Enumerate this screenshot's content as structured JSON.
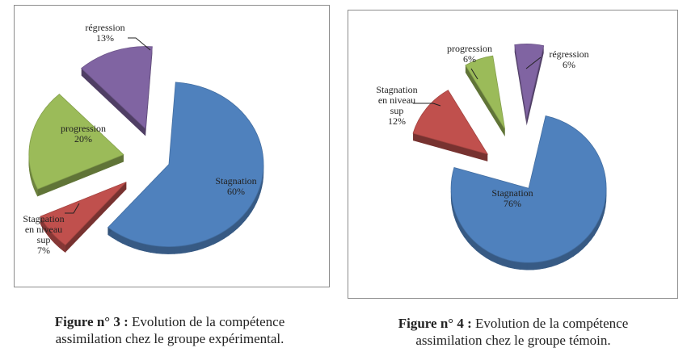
{
  "chart_data": [
    {
      "type": "pie",
      "title": "",
      "categories": [
        "Stagnation",
        "Stagnation en niveau sup",
        "progression",
        "régression"
      ],
      "values": [
        60,
        7,
        20,
        13
      ],
      "labels": [
        [
          "Stagnation",
          "60%"
        ],
        [
          "Stagnation",
          "en niveau",
          "sup",
          "7%"
        ],
        [
          "progression",
          "20%"
        ],
        [
          "régression",
          "13%"
        ]
      ],
      "colors": [
        "#4f81bd",
        "#c0504d",
        "#9bbb59",
        "#8064a2"
      ],
      "style": "exploded 3D pie"
    },
    {
      "type": "pie",
      "title": "",
      "categories": [
        "Stagnation",
        "Stagnation en niveau sup",
        "progression",
        "régression"
      ],
      "values": [
        76,
        12,
        6,
        6
      ],
      "labels": [
        [
          "Stagnation",
          "76%"
        ],
        [
          "Stagnation",
          "en niveau",
          "sup",
          "12%"
        ],
        [
          "progression",
          "6%"
        ],
        [
          "régression",
          "6%"
        ]
      ],
      "colors": [
        "#4f81bd",
        "#c0504d",
        "#9bbb59",
        "#8064a2"
      ],
      "style": "exploded 3D pie"
    }
  ],
  "captions": [
    {
      "prefix": "Figure n° 3 :",
      "text": "Evolution de la compétence",
      "line2": "assimilation chez le groupe expérimental."
    },
    {
      "prefix": "Figure n° 4 :",
      "text": "Evolution de la compétence",
      "line2": "assimilation chez le groupe témoin."
    }
  ]
}
